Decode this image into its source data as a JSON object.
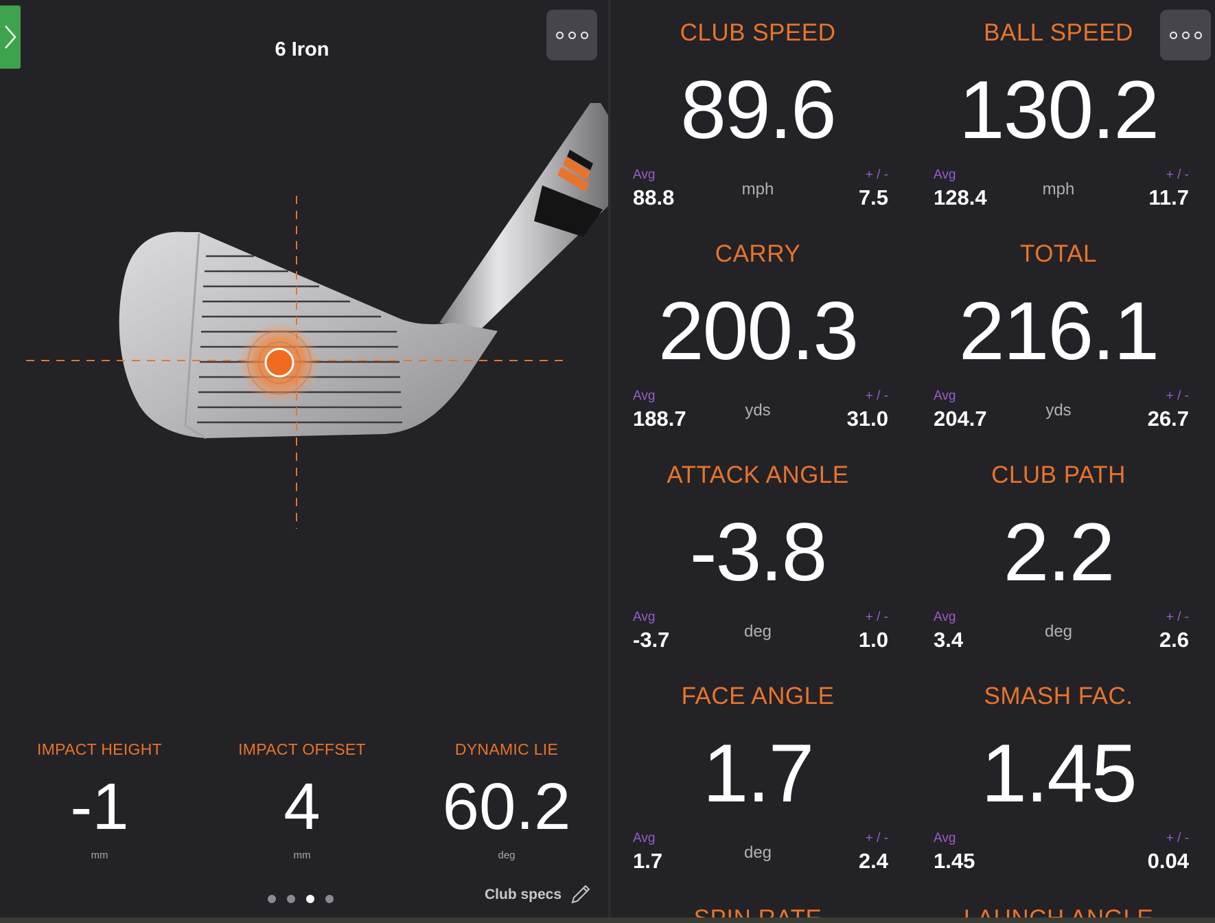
{
  "colors": {
    "background": "#232226",
    "accent": "#e8742c",
    "avg_label": "#9a5cc9",
    "expand_tab": "#3fa34d"
  },
  "left": {
    "club_name": "6 Iron",
    "impact_metrics": [
      {
        "label": "IMPACT HEIGHT",
        "value": "-1",
        "unit": "mm"
      },
      {
        "label": "IMPACT OFFSET",
        "value": "4",
        "unit": "mm"
      },
      {
        "label": "DYNAMIC LIE",
        "value": "60.2",
        "unit": "deg"
      }
    ],
    "pager": {
      "count": 4,
      "active_index": 2
    },
    "club_specs_label": "Club specs",
    "icons": {
      "expand": "chevron-right-icon",
      "more": "more-options-icon",
      "edit": "pencil-icon"
    }
  },
  "right": {
    "avg_label": "Avg",
    "pm_label": "+ / -",
    "metrics": [
      {
        "label": "CLUB SPEED",
        "value": "89.6",
        "unit": "mph",
        "avg": "88.8",
        "pm": "7.5"
      },
      {
        "label": "BALL SPEED",
        "value": "130.2",
        "unit": "mph",
        "avg": "128.4",
        "pm": "11.7"
      },
      {
        "label": "CARRY",
        "value": "200.3",
        "unit": "yds",
        "avg": "188.7",
        "pm": "31.0"
      },
      {
        "label": "TOTAL",
        "value": "216.1",
        "unit": "yds",
        "avg": "204.7",
        "pm": "26.7"
      },
      {
        "label": "ATTACK ANGLE",
        "value": "-3.8",
        "unit": "deg",
        "avg": "-3.7",
        "pm": "1.0"
      },
      {
        "label": "CLUB PATH",
        "value": "2.2",
        "unit": "deg",
        "avg": "3.4",
        "pm": "2.6"
      },
      {
        "label": "FACE ANGLE",
        "value": "1.7",
        "unit": "deg",
        "avg": "1.7",
        "pm": "2.4"
      },
      {
        "label": "SMASH FAC.",
        "value": "1.45",
        "unit": "",
        "avg": "1.45",
        "pm": "0.04"
      }
    ],
    "cut_off_labels": [
      "SPIN RATE",
      "LAUNCH ANGLE"
    ]
  }
}
